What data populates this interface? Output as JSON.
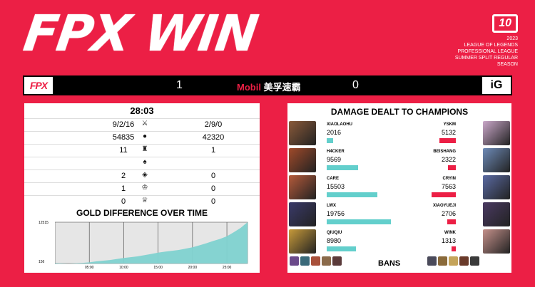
{
  "headline": "FPX WIN",
  "brand": {
    "logo": "10",
    "lines": [
      "2023",
      "LEAGUE OF LEGENDS",
      "PROFESSIONAL LEAGUE",
      "SUMMER SPLIT REGULAR SEASON"
    ]
  },
  "scoreboard": {
    "left_team": "FPX",
    "right_team": "iG",
    "left_score": "1",
    "right_score": "0",
    "sponsor_a": "Mobil",
    "sponsor_b": "美孚速霸"
  },
  "match": {
    "duration": "28:03",
    "stats": [
      {
        "icon": "sword-icon",
        "glyph": "⚔",
        "left": "9/2/16",
        "right": "2/9/0"
      },
      {
        "icon": "gold-coins-icon",
        "glyph": "●",
        "left": "54835",
        "right": "42320"
      },
      {
        "icon": "tower-icon",
        "glyph": "♜",
        "left": "11",
        "right": "1"
      },
      {
        "icon": "dragon-icon",
        "glyph": "♠",
        "left": "",
        "right": ""
      },
      {
        "icon": "rift-herald-icon",
        "glyph": "◈",
        "left": "2",
        "right": "0"
      },
      {
        "icon": "baron-icon",
        "glyph": "♔",
        "left": "1",
        "right": "0"
      },
      {
        "icon": "elder-dragon-icon",
        "glyph": "♕",
        "left": "0",
        "right": "0"
      }
    ],
    "gold_title": "GOLD DIFFERENCE OVER TIME"
  },
  "chart_data": {
    "type": "area",
    "title": "GOLD DIFFERENCE OVER TIME",
    "x": [
      0,
      2,
      4,
      5,
      6,
      8,
      10,
      12,
      14,
      15,
      16,
      18,
      19,
      20,
      21,
      22,
      23,
      24,
      25,
      26,
      27,
      28
    ],
    "values": [
      0,
      150,
      350,
      500,
      800,
      1200,
      1800,
      2300,
      3000,
      3400,
      3700,
      4200,
      4600,
      5000,
      5600,
      6200,
      6900,
      7500,
      8300,
      9500,
      10800,
      12515
    ],
    "x_ticks": [
      "05:00",
      "10:00",
      "15:00",
      "20:00",
      "25:00"
    ],
    "y_ticks": [
      "12515",
      "156"
    ],
    "xlim": [
      0,
      28
    ],
    "ylim": [
      156,
      12515
    ],
    "color": "#7fd2d0"
  },
  "damage": {
    "title": "DAMAGE DEALT TO CHAMPIONS",
    "left": [
      {
        "name": "XIAOLAOHU",
        "value": "2016",
        "num": 2016,
        "color": "#8a5a3a"
      },
      {
        "name": "H4CKER",
        "value": "9569",
        "num": 9569,
        "color": "#a04a2a"
      },
      {
        "name": "CARE",
        "value": "15503",
        "num": 15503,
        "color": "#b55a3a"
      },
      {
        "name": "LWX",
        "value": "19756",
        "num": 19756,
        "color": "#3a3a6a"
      },
      {
        "name": "QIUQIU",
        "value": "8980",
        "num": 8980,
        "color": "#c79a3a"
      }
    ],
    "right": [
      {
        "name": "YSKM",
        "value": "5132",
        "num": 5132,
        "color": "#caa7c9"
      },
      {
        "name": "BEISHANG",
        "value": "2322",
        "num": 2322,
        "color": "#6d8ab7"
      },
      {
        "name": "CRYIN",
        "value": "7563",
        "num": 7563,
        "color": "#5a6aa2"
      },
      {
        "name": "XIAOYUEJI",
        "value": "2706",
        "num": 2706,
        "color": "#4a3a62"
      },
      {
        "name": "WINK",
        "value": "1313",
        "num": 1313,
        "color": "#c4908a"
      }
    ],
    "max": 19756,
    "left_bar_color": "#63cfcc",
    "right_bar_color": "#ec1f45",
    "bans_label": "BANS",
    "bans_left": [
      "#6b4a8a",
      "#3a6a7a",
      "#a8503a",
      "#8a6a4a",
      "#5a3a3a"
    ],
    "bans_right": [
      "#4a4a5a",
      "#8a6a3a",
      "#c5a45a",
      "#6a3a2a",
      "#3a3a3a"
    ]
  }
}
